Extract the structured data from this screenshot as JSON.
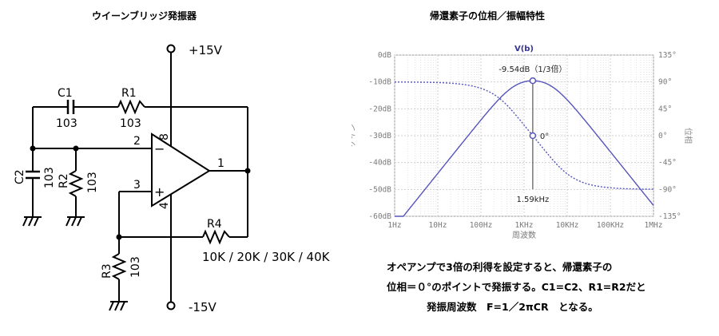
{
  "circuit": {
    "title": "ウイーンブリッジ発振器",
    "vcc": "+15V",
    "vee": "-15V",
    "c1_name": "C1",
    "c1_value": "103",
    "r1_name": "R1",
    "r1_value": "103",
    "c2_name": "C2",
    "c2_value": "103",
    "r2_name": "R2",
    "r2_value": "103",
    "r3_name": "R3",
    "r3_value": "103",
    "r4_name": "R4",
    "r4_values": "10K / 20K / 30K / 40K",
    "pin_in_minus": "2",
    "pin_in_plus": "3",
    "pin_out": "1",
    "pin_vcc": "8",
    "pin_vee": "4",
    "minus_sign": "−",
    "plus_sign": "+"
  },
  "chart_title": "帰還素子の位相／振幅特性",
  "chart_data": {
    "type": "line",
    "legend": "V(b)",
    "xlabel": "周波数",
    "ylabel_left": "ゲイン",
    "ylabel_right": "位相",
    "x_ticks": [
      "1Hz",
      "10Hz",
      "100Hz",
      "1KHz",
      "10KHz",
      "100KHz",
      "1MHz"
    ],
    "x_tick_values": [
      1,
      10,
      100,
      1000,
      10000,
      100000,
      1000000
    ],
    "y_left_ticks": [
      "0dB",
      "-10dB",
      "-20dB",
      "-30dB",
      "-40dB",
      "-50dB",
      "-60dB"
    ],
    "y_left_values": [
      0,
      -10,
      -20,
      -30,
      -40,
      -50,
      -60
    ],
    "y_right_ticks": [
      "135°",
      "90°",
      "45°",
      "0°",
      "-45°",
      "-90°",
      "-135°"
    ],
    "y_right_values": [
      135,
      90,
      45,
      0,
      -45,
      -90,
      -135
    ],
    "xlim": [
      1,
      1000000
    ],
    "ylim_left": [
      -60,
      0
    ],
    "ylim_right": [
      -135,
      135
    ],
    "x_scale": "log",
    "grid": true,
    "f0_hz": 1591.5,
    "annotations": {
      "peak": "-9.54dB（1/3倍）",
      "phase_zero": "0°",
      "freq": "1.59kHz"
    },
    "series": [
      {
        "name": "ゲイン",
        "style": "solid",
        "color": "#5555bb",
        "formula": "gain_dB = 20*log10(1/sqrt(9+(f/f0 - f0/f)^2))"
      },
      {
        "name": "位相",
        "style": "dotted",
        "color": "#5555bb",
        "formula": "phase_deg = -atan((f/f0 - f0/f)/3)"
      }
    ]
  },
  "note": {
    "line1": "オペアンプで3倍の利得を設定すると、帰還素子の",
    "line2": "位相＝０°のポイントで発振する。C1=C2、R1=R2だと",
    "line3": "発振周波数　F=1／2πCR　となる。"
  }
}
